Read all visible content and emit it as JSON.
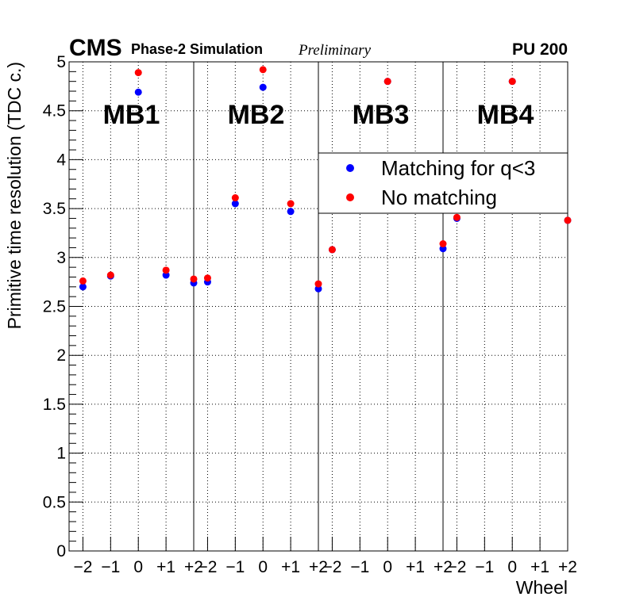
{
  "header": {
    "cms": "CMS",
    "simulation": "Phase-2 Simulation",
    "preliminary": "Preliminary",
    "pileup": "PU 200"
  },
  "colors": {
    "matching": "#0000ff",
    "no_matching": "#ff0000",
    "axis": "#000000",
    "grid": "#000000"
  },
  "chart_data": {
    "type": "scatter",
    "title": "",
    "xlabel": "Wheel",
    "ylabel": "Primitive time resolution (TDC c.)",
    "ylim": [
      0,
      5
    ],
    "yticks": [
      "0",
      "0.5",
      "1",
      "1.5",
      "2",
      "2.5",
      "3",
      "3.5",
      "4",
      "4.5",
      "5"
    ],
    "stations": [
      "MB1",
      "MB2",
      "MB3",
      "MB4"
    ],
    "wheel_tick_labels": [
      "−2",
      "−1",
      "0",
      "+1",
      "+2"
    ],
    "grid": true,
    "legend_position": "right, below station labels",
    "series": [
      {
        "name": "Matching for q<3",
        "color": "#0000ff",
        "values": [
          [
            2.7,
            2.81,
            4.69,
            2.82,
            2.74
          ],
          [
            2.75,
            3.55,
            4.74,
            3.47,
            2.68
          ],
          [
            3.08,
            null,
            4.8,
            null,
            3.09
          ],
          [
            3.4,
            null,
            4.8,
            null,
            3.38
          ]
        ]
      },
      {
        "name": "No matching",
        "color": "#ff0000",
        "values": [
          [
            2.76,
            2.82,
            4.89,
            2.87,
            2.78
          ],
          [
            2.79,
            3.61,
            4.92,
            3.55,
            2.73
          ],
          [
            3.08,
            null,
            4.8,
            null,
            3.14
          ],
          [
            3.41,
            null,
            4.8,
            null,
            3.38
          ]
        ]
      }
    ]
  }
}
